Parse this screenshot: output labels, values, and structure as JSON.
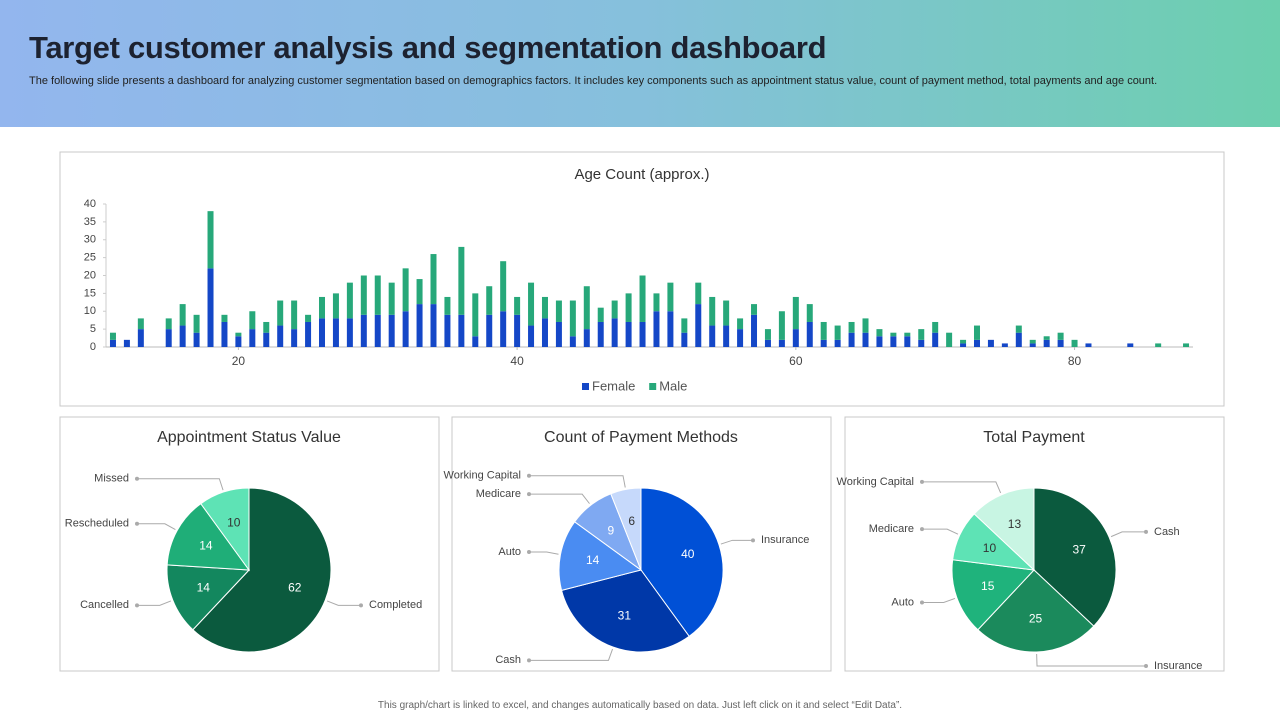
{
  "header": {
    "title": "Target customer analysis and segmentation dashboard",
    "subtitle": "The following slide presents a dashboard for analyzing customer segmentation based on demographics factors. It includes key components such as appointment status value, count of payment method, total payments and age count."
  },
  "footer": "This graph/chart is linked to excel, and changes automatically based on data. Just left click on it and select “Edit Data”.",
  "chart_data": [
    {
      "type": "bar",
      "stacked": true,
      "title": "Age Count (approx.)",
      "x": [
        11,
        12,
        13,
        14,
        15,
        16,
        17,
        18,
        19,
        20,
        21,
        22,
        23,
        24,
        25,
        26,
        27,
        28,
        29,
        30,
        31,
        32,
        33,
        34,
        35,
        36,
        37,
        38,
        39,
        40,
        41,
        42,
        43,
        44,
        45,
        46,
        47,
        48,
        49,
        50,
        51,
        52,
        53,
        54,
        55,
        56,
        57,
        58,
        59,
        60,
        61,
        62,
        63,
        64,
        65,
        66,
        67,
        68,
        69,
        70,
        71,
        72,
        73,
        74,
        75,
        76,
        77,
        78,
        79,
        80,
        81,
        82,
        83,
        84,
        85,
        86,
        87,
        88
      ],
      "series": [
        {
          "name": "Female",
          "color": "#1447c7",
          "values": [
            2,
            2,
            5,
            0,
            5,
            6,
            4,
            22,
            7,
            3,
            5,
            4,
            6,
            5,
            7,
            8,
            8,
            8,
            9,
            9,
            9,
            10,
            12,
            12,
            9,
            9,
            3,
            9,
            10,
            9,
            6,
            8,
            7,
            3,
            5,
            7,
            8,
            7,
            7,
            10,
            10,
            4,
            12,
            6,
            6,
            5,
            9,
            2,
            2,
            5,
            7,
            2,
            2,
            4,
            4,
            3,
            3,
            3,
            2,
            4,
            0,
            1,
            2,
            2,
            1,
            4,
            1,
            2,
            2,
            0,
            1,
            0,
            0,
            1,
            0,
            0,
            0,
            0
          ]
        },
        {
          "name": "Male",
          "color": "#27a87a",
          "values": [
            2,
            0,
            3,
            0,
            3,
            6,
            5,
            16,
            2,
            1,
            5,
            3,
            7,
            8,
            2,
            6,
            7,
            10,
            11,
            11,
            9,
            12,
            7,
            14,
            5,
            19,
            12,
            8,
            14,
            5,
            12,
            6,
            6,
            10,
            12,
            4,
            5,
            8,
            13,
            5,
            8,
            4,
            6,
            8,
            7,
            3,
            3,
            3,
            8,
            9,
            5,
            5,
            4,
            3,
            4,
            2,
            1,
            1,
            3,
            3,
            4,
            1,
            4,
            0,
            0,
            2,
            1,
            1,
            2,
            2,
            0,
            0,
            0,
            0,
            0,
            1,
            0,
            1
          ]
        }
      ],
      "xlim": [
        10.5,
        88.5
      ],
      "xticks": [
        20,
        40,
        60,
        80
      ],
      "ylim": [
        0,
        40
      ],
      "yticks": [
        0,
        5,
        10,
        15,
        20,
        25,
        30,
        35,
        40
      ],
      "legend": "bottom"
    },
    {
      "type": "pie",
      "title": "Appointment Status Value",
      "categories": [
        "Completed",
        "Cancelled",
        "Rescheduled",
        "Missed"
      ],
      "values": [
        62,
        14,
        14,
        10
      ],
      "colors": [
        "#0b5a3e",
        "#13875e",
        "#1fae78",
        "#5ee3b5"
      ]
    },
    {
      "type": "pie",
      "title": "Count of Payment Methods",
      "categories": [
        "Insurance",
        "Cash",
        "Auto",
        "Medicare",
        "Working Capital"
      ],
      "values": [
        40,
        31,
        14,
        9,
        6
      ],
      "colors": [
        "#0050d6",
        "#0038a8",
        "#4a8cf2",
        "#7fa9f2",
        "#c6d9fb"
      ]
    },
    {
      "type": "pie",
      "title": "Total Payment",
      "categories": [
        "Cash",
        "Insurance",
        "Auto",
        "Medicare",
        "Working Capital"
      ],
      "values": [
        37,
        25,
        15,
        10,
        13
      ],
      "colors": [
        "#0b5a3e",
        "#1b8a5c",
        "#1fb37c",
        "#5ee3b5",
        "#c8f5e3"
      ]
    }
  ]
}
